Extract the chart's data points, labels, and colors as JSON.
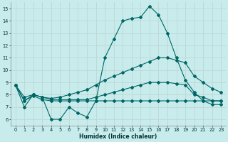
{
  "background_color": "#c8ecec",
  "grid_color": "#c0d8d8",
  "line_color": "#006666",
  "xlabel": "Humidex (Indice chaleur)",
  "xlim": [
    -0.5,
    23.5
  ],
  "ylim": [
    5.5,
    15.5
  ],
  "yticks": [
    6,
    7,
    8,
    9,
    10,
    11,
    12,
    13,
    14,
    15
  ],
  "xticks": [
    0,
    1,
    2,
    3,
    4,
    5,
    6,
    7,
    8,
    9,
    10,
    11,
    12,
    13,
    14,
    15,
    16,
    17,
    18,
    19,
    20,
    21,
    22,
    23
  ],
  "line1_x": [
    0,
    1,
    2,
    3,
    4,
    5,
    6,
    7,
    8,
    9,
    10,
    11,
    12,
    13,
    14,
    15,
    16,
    17,
    18,
    19,
    20,
    21,
    22,
    23
  ],
  "line1_y": [
    8.8,
    7.0,
    8.0,
    7.8,
    6.0,
    6.0,
    7.0,
    6.5,
    6.2,
    7.5,
    11.0,
    12.5,
    14.0,
    14.2,
    14.3,
    15.2,
    14.5,
    13.0,
    11.0,
    9.2,
    8.2,
    7.5,
    7.2,
    7.2
  ],
  "line2_x": [
    0,
    1,
    2,
    3,
    4,
    5,
    6,
    7,
    8,
    9,
    10,
    11,
    12,
    13,
    14,
    15,
    16,
    17,
    18,
    19,
    20,
    21,
    22,
    23
  ],
  "line2_y": [
    8.8,
    7.8,
    8.0,
    7.8,
    7.7,
    7.8,
    8.0,
    8.2,
    8.4,
    8.8,
    9.2,
    9.5,
    9.8,
    10.1,
    10.4,
    10.7,
    11.0,
    11.0,
    10.8,
    10.6,
    9.5,
    9.0,
    8.5,
    8.2
  ],
  "line3_x": [
    0,
    1,
    2,
    3,
    4,
    5,
    6,
    7,
    8,
    9,
    10,
    11,
    12,
    13,
    14,
    15,
    16,
    17,
    18,
    19,
    20,
    21,
    22,
    23
  ],
  "line3_y": [
    8.8,
    7.5,
    7.9,
    7.6,
    7.5,
    7.5,
    7.5,
    7.5,
    7.5,
    7.5,
    7.5,
    7.5,
    7.5,
    7.5,
    7.5,
    7.5,
    7.5,
    7.5,
    7.5,
    7.5,
    7.5,
    7.5,
    7.5,
    7.5
  ],
  "line4_x": [
    0,
    1,
    2,
    3,
    4,
    5,
    6,
    7,
    8,
    9,
    10,
    11,
    12,
    13,
    14,
    15,
    16,
    17,
    18,
    19,
    20,
    21,
    22,
    23
  ],
  "line4_y": [
    8.8,
    7.5,
    8.0,
    7.8,
    7.6,
    7.6,
    7.6,
    7.6,
    7.6,
    7.8,
    8.0,
    8.2,
    8.4,
    8.6,
    8.8,
    9.0,
    9.0,
    9.0,
    8.9,
    8.8,
    8.0,
    7.8,
    7.5,
    7.5
  ]
}
